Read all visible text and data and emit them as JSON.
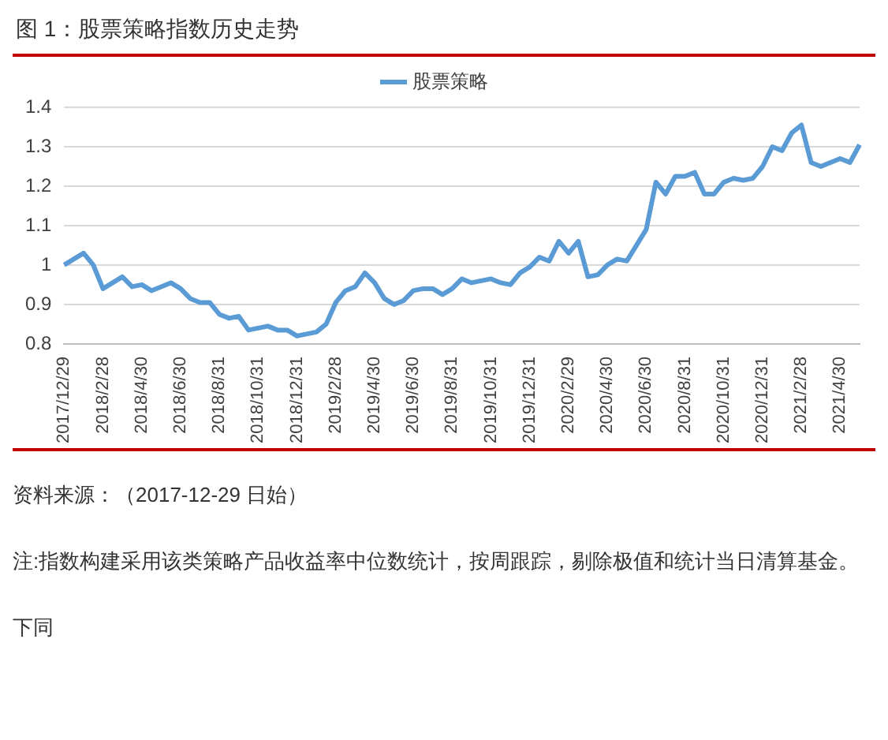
{
  "chart_data": {
    "type": "line",
    "title": "图 1：股票策略指数历史走势",
    "categories": [
      "2017/12/29",
      null,
      null,
      null,
      "2018/2/28",
      null,
      null,
      null,
      "2018/4/30",
      null,
      null,
      null,
      "2018/6/30",
      null,
      null,
      null,
      "2018/8/31",
      null,
      null,
      null,
      "2018/10/31",
      null,
      null,
      null,
      "2018/12/31",
      null,
      null,
      null,
      "2019/2/28",
      null,
      null,
      null,
      "2019/4/30",
      null,
      null,
      null,
      "2019/6/30",
      null,
      null,
      null,
      "2019/8/31",
      null,
      null,
      null,
      "2019/10/31",
      null,
      null,
      null,
      "2019/12/31",
      null,
      null,
      null,
      "2020/2/29",
      null,
      null,
      null,
      "2020/4/30",
      null,
      null,
      null,
      "2020/6/30",
      null,
      null,
      null,
      "2020/8/31",
      null,
      null,
      null,
      "2020/10/31",
      null,
      null,
      null,
      "2020/12/31",
      null,
      null,
      null,
      "2021/2/28",
      null,
      null,
      null,
      "2021/4/30",
      null,
      null
    ],
    "series": [
      {
        "name": "股票策略",
        "color": "#5b9bd5",
        "values": [
          1.0,
          1.015,
          1.03,
          1.0,
          0.94,
          0.955,
          0.97,
          0.945,
          0.95,
          0.935,
          0.945,
          0.955,
          0.94,
          0.915,
          0.905,
          0.905,
          0.875,
          0.865,
          0.87,
          0.835,
          0.84,
          0.845,
          0.835,
          0.835,
          0.82,
          0.825,
          0.83,
          0.85,
          0.905,
          0.935,
          0.945,
          0.98,
          0.955,
          0.915,
          0.9,
          0.91,
          0.935,
          0.94,
          0.94,
          0.925,
          0.94,
          0.965,
          0.955,
          0.96,
          0.965,
          0.955,
          0.95,
          0.98,
          0.995,
          1.02,
          1.01,
          1.06,
          1.03,
          1.06,
          0.97,
          0.975,
          1.0,
          1.015,
          1.01,
          1.05,
          1.09,
          1.21,
          1.18,
          1.225,
          1.225,
          1.235,
          1.18,
          1.18,
          1.21,
          1.22,
          1.215,
          1.22,
          1.25,
          1.3,
          1.29,
          1.335,
          1.355,
          1.26,
          1.25,
          1.26,
          1.27,
          1.26,
          1.305
        ]
      }
    ],
    "ylim": [
      0.8,
      1.4
    ],
    "yticks": [
      0.8,
      0.9,
      1,
      1.1,
      1.2,
      1.3,
      1.4
    ],
    "grid": "y",
    "legend": "top",
    "marker": "none",
    "line_style": "solid",
    "annotations": [
      "资料来源：（2017-12-29 日始）",
      "注:指数构建采用该类策略产品收益率中位数统计，按周跟踪，剔除极值和统计当日清算基金。",
      "下同"
    ]
  }
}
